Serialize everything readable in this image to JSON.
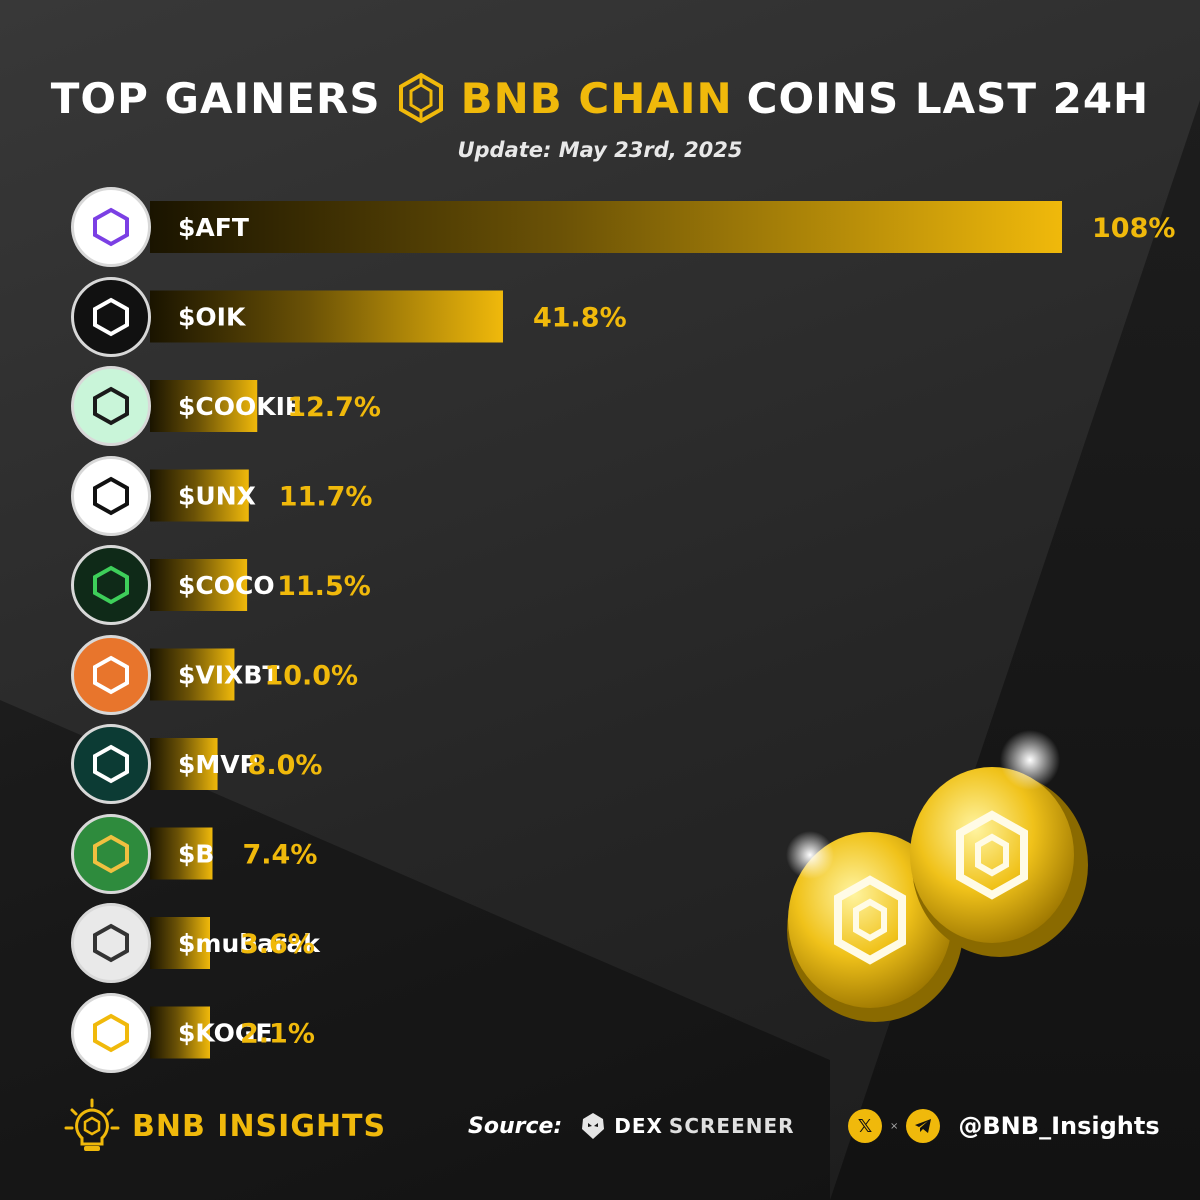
{
  "header": {
    "title_part1": "TOP GAINERS",
    "title_brand": "BNB CHAIN",
    "title_part2": "COINS LAST 24H",
    "subtitle": "Update: May 23rd, 2025"
  },
  "colors": {
    "accent": "#f0b90b",
    "bar_start": "#1a1400",
    "bar_end": "#f0b90b",
    "value_text": "#f0b90b"
  },
  "chart_data": {
    "type": "bar",
    "orientation": "horizontal",
    "categories": [
      "$AFT",
      "$OIK",
      "$COOKIE",
      "$UNX",
      "$COCO",
      "$VIXBT",
      "$MVP",
      "$B",
      "$mubarak",
      "$KOGE"
    ],
    "values": [
      108,
      41.8,
      12.7,
      11.7,
      11.5,
      10.0,
      8.0,
      7.4,
      3.6,
      2.1
    ],
    "value_labels": [
      "108%",
      "41.8%",
      "12.7%",
      "11.7%",
      "11.5%",
      "10.0%",
      "8.0%",
      "7.4%",
      "3.6%",
      "2.1%"
    ],
    "unit": "%",
    "title": "TOP GAINERS BNB CHAIN COINS LAST 24H",
    "subtitle": "Update: May 23rd, 2025",
    "grid": false
  },
  "coin_logos": [
    {
      "label": "$AFT",
      "icon": "aft-logo-icon",
      "bg": "#ffffff",
      "fg": "#7b3fe4"
    },
    {
      "label": "$OIK",
      "icon": "spacenation-logo-icon",
      "bg": "#111111",
      "fg": "#ffffff"
    },
    {
      "label": "$COOKIE",
      "icon": "cookie-logo-icon",
      "bg": "#c9f5d9",
      "fg": "#1a1a1a"
    },
    {
      "label": "$UNX",
      "icon": "unx-logo-icon",
      "bg": "#ffffff",
      "fg": "#111111"
    },
    {
      "label": "$COCO",
      "icon": "cococoin-logo-icon",
      "bg": "#0f2a18",
      "fg": "#3ecf5a"
    },
    {
      "label": "$VIXBT",
      "icon": "videoxbt-logo-icon",
      "bg": "#e8752c",
      "fg": "#ffffff"
    },
    {
      "label": "$MVP",
      "icon": "cryptosocks-logo-icon",
      "bg": "#0c3b34",
      "fg": "#ffffff"
    },
    {
      "label": "$B",
      "icon": "lion-logo-icon",
      "bg": "#2e8b3d",
      "fg": "#f0c040"
    },
    {
      "label": "$mubarak",
      "icon": "mubarak-logo-icon",
      "bg": "#e9e9e9",
      "fg": "#333333"
    },
    {
      "label": "$KOGE",
      "icon": "koge-logo-icon",
      "bg": "#ffffff",
      "fg": "#f0b90b"
    }
  ],
  "footer": {
    "brand": "BNB INSIGHTS",
    "brand_icon": "lightbulb-bnb-icon",
    "source_label": "Source:",
    "source_name_1": "DEX",
    "source_name_2": "SCREENER",
    "source_icon": "dexscreener-icon",
    "social_x_icon": "x-icon",
    "social_telegram_icon": "telegram-icon",
    "handle": "@BNB_Insights"
  }
}
